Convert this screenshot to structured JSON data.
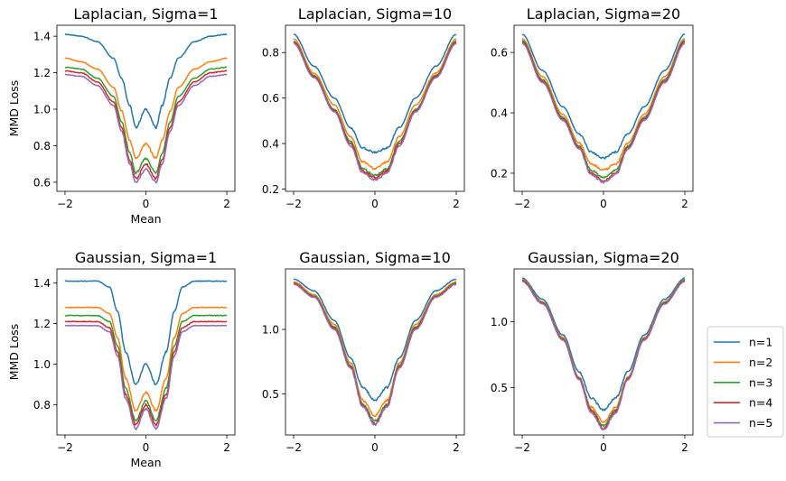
{
  "chart_data": [
    {
      "type": "line",
      "title": "Laplacian, Sigma=1",
      "xlabel": "Mean",
      "ylabel": "MMD Loss",
      "xlim": [
        -2.2,
        2.2
      ],
      "ylim": [
        0.55,
        1.46
      ],
      "x": [
        -2.0,
        -1.6,
        -1.2,
        -0.8,
        -0.6,
        -0.4,
        -0.25,
        0.0,
        0.25,
        0.4,
        0.6,
        0.8,
        1.2,
        1.6,
        2.0
      ],
      "xticks": [
        -2,
        0,
        2
      ],
      "xtick_labels": [
        "−2",
        "0",
        "2"
      ],
      "yticks": [
        0.6,
        0.8,
        1.0,
        1.2,
        1.4
      ],
      "ytick_labels": [
        "0.6",
        "0.8",
        "1.0",
        "1.2",
        "1.4"
      ],
      "series": [
        {
          "name": "n=1",
          "values": [
            1.41,
            1.4,
            1.37,
            1.28,
            1.17,
            1.02,
            0.9,
            1.0,
            0.9,
            1.02,
            1.17,
            1.28,
            1.37,
            1.4,
            1.41
          ]
        },
        {
          "name": "n=2",
          "values": [
            1.28,
            1.26,
            1.22,
            1.12,
            0.99,
            0.83,
            0.73,
            0.81,
            0.73,
            0.83,
            0.99,
            1.12,
            1.22,
            1.26,
            1.28
          ]
        },
        {
          "name": "n=3",
          "values": [
            1.23,
            1.22,
            1.17,
            1.07,
            0.93,
            0.76,
            0.65,
            0.73,
            0.65,
            0.76,
            0.93,
            1.07,
            1.17,
            1.22,
            1.23
          ]
        },
        {
          "name": "n=4",
          "values": [
            1.21,
            1.2,
            1.15,
            1.04,
            0.9,
            0.72,
            0.62,
            0.7,
            0.62,
            0.72,
            0.9,
            1.04,
            1.15,
            1.2,
            1.21
          ]
        },
        {
          "name": "n=5",
          "values": [
            1.19,
            1.18,
            1.13,
            1.02,
            0.88,
            0.7,
            0.6,
            0.67,
            0.6,
            0.7,
            0.88,
            1.02,
            1.13,
            1.18,
            1.19
          ]
        }
      ]
    },
    {
      "type": "line",
      "title": "Laplacian, Sigma=10",
      "xlabel": "",
      "ylabel": "",
      "xlim": [
        -2.2,
        2.2
      ],
      "ylim": [
        0.19,
        0.92
      ],
      "x": [
        -2.0,
        -1.5,
        -1.0,
        -0.6,
        -0.3,
        0.0,
        0.3,
        0.6,
        1.0,
        1.5,
        2.0
      ],
      "xticks": [
        -2,
        0,
        2
      ],
      "xtick_labels": [
        "−2",
        "0",
        "2"
      ],
      "yticks": [
        0.2,
        0.4,
        0.6,
        0.8
      ],
      "ytick_labels": [
        "0.2",
        "0.4",
        "0.6",
        "0.8"
      ],
      "series": [
        {
          "name": "n=1",
          "values": [
            0.88,
            0.74,
            0.6,
            0.47,
            0.38,
            0.36,
            0.38,
            0.47,
            0.6,
            0.74,
            0.88
          ]
        },
        {
          "name": "n=2",
          "values": [
            0.86,
            0.71,
            0.57,
            0.43,
            0.32,
            0.29,
            0.32,
            0.43,
            0.57,
            0.71,
            0.86
          ]
        },
        {
          "name": "n=3",
          "values": [
            0.85,
            0.7,
            0.55,
            0.41,
            0.29,
            0.26,
            0.29,
            0.41,
            0.55,
            0.7,
            0.85
          ]
        },
        {
          "name": "n=4",
          "values": [
            0.845,
            0.695,
            0.545,
            0.4,
            0.28,
            0.25,
            0.28,
            0.4,
            0.545,
            0.695,
            0.845
          ]
        },
        {
          "name": "n=5",
          "values": [
            0.84,
            0.69,
            0.54,
            0.39,
            0.27,
            0.24,
            0.27,
            0.39,
            0.54,
            0.69,
            0.84
          ]
        }
      ]
    },
    {
      "type": "line",
      "title": "Laplacian, Sigma=20",
      "xlabel": "",
      "ylabel": "",
      "xlim": [
        -2.2,
        2.2
      ],
      "ylim": [
        0.14,
        0.69
      ],
      "x": [
        -2.0,
        -1.5,
        -1.0,
        -0.6,
        -0.3,
        0.0,
        0.3,
        0.6,
        1.0,
        1.5,
        2.0
      ],
      "xticks": [
        -2,
        0,
        2
      ],
      "xtick_labels": [
        "−2",
        "0",
        "2"
      ],
      "yticks": [
        0.2,
        0.4,
        0.6
      ],
      "ytick_labels": [
        "0.2",
        "0.4",
        "0.6"
      ],
      "series": [
        {
          "name": "n=1",
          "values": [
            0.66,
            0.54,
            0.42,
            0.33,
            0.27,
            0.25,
            0.27,
            0.33,
            0.42,
            0.54,
            0.66
          ]
        },
        {
          "name": "n=2",
          "values": [
            0.645,
            0.52,
            0.395,
            0.3,
            0.23,
            0.21,
            0.23,
            0.3,
            0.395,
            0.52,
            0.645
          ]
        },
        {
          "name": "n=3",
          "values": [
            0.64,
            0.51,
            0.385,
            0.29,
            0.21,
            0.185,
            0.21,
            0.29,
            0.385,
            0.51,
            0.64
          ]
        },
        {
          "name": "n=4",
          "values": [
            0.635,
            0.505,
            0.38,
            0.285,
            0.2,
            0.175,
            0.2,
            0.285,
            0.38,
            0.505,
            0.635
          ]
        },
        {
          "name": "n=5",
          "values": [
            0.63,
            0.5,
            0.375,
            0.28,
            0.195,
            0.17,
            0.195,
            0.28,
            0.375,
            0.5,
            0.63
          ]
        }
      ]
    },
    {
      "type": "line",
      "title": "Gaussian, Sigma=1",
      "xlabel": "Mean",
      "ylabel": "MMD Loss",
      "xlim": [
        -2.2,
        2.2
      ],
      "ylim": [
        0.65,
        1.47
      ],
      "x": [
        -2.0,
        -1.6,
        -1.2,
        -0.9,
        -0.7,
        -0.5,
        -0.25,
        0.0,
        0.25,
        0.5,
        0.7,
        0.9,
        1.2,
        1.6,
        2.0
      ],
      "xticks": [
        -2,
        0,
        2
      ],
      "xtick_labels": [
        "−2",
        "0",
        "2"
      ],
      "yticks": [
        0.8,
        1.0,
        1.2,
        1.4
      ],
      "ytick_labels": [
        "0.8",
        "1.0",
        "1.2",
        "1.4"
      ],
      "series": [
        {
          "name": "n=1",
          "values": [
            1.41,
            1.41,
            1.41,
            1.38,
            1.26,
            1.06,
            0.9,
            1.0,
            0.9,
            1.06,
            1.26,
            1.38,
            1.41,
            1.41,
            1.41
          ]
        },
        {
          "name": "n=2",
          "values": [
            1.28,
            1.28,
            1.28,
            1.25,
            1.13,
            0.93,
            0.77,
            0.86,
            0.77,
            0.93,
            1.13,
            1.25,
            1.28,
            1.28,
            1.28
          ]
        },
        {
          "name": "n=3",
          "values": [
            1.24,
            1.24,
            1.24,
            1.21,
            1.09,
            0.88,
            0.72,
            0.82,
            0.72,
            0.88,
            1.09,
            1.21,
            1.24,
            1.24,
            1.24
          ]
        },
        {
          "name": "n=4",
          "values": [
            1.21,
            1.21,
            1.21,
            1.18,
            1.06,
            0.85,
            0.7,
            0.8,
            0.7,
            0.85,
            1.06,
            1.18,
            1.21,
            1.21,
            1.21
          ]
        },
        {
          "name": "n=5",
          "values": [
            1.19,
            1.19,
            1.19,
            1.16,
            1.04,
            0.83,
            0.68,
            0.78,
            0.68,
            0.83,
            1.04,
            1.16,
            1.19,
            1.19,
            1.19
          ]
        }
      ]
    },
    {
      "type": "line",
      "title": "Gaussian, Sigma=10",
      "xlabel": "",
      "ylabel": "",
      "xlim": [
        -2.2,
        2.2
      ],
      "ylim": [
        0.18,
        1.47
      ],
      "x": [
        -2.0,
        -1.5,
        -1.0,
        -0.6,
        -0.3,
        0.0,
        0.3,
        0.6,
        1.0,
        1.5,
        2.0
      ],
      "xticks": [
        -2,
        0,
        2
      ],
      "xtick_labels": [
        "−2",
        "0",
        "2"
      ],
      "yticks": [
        0.5,
        1.0
      ],
      "ytick_labels": [
        "0.5",
        "1.0"
      ],
      "series": [
        {
          "name": "n=1",
          "values": [
            1.39,
            1.3,
            1.07,
            0.78,
            0.55,
            0.45,
            0.55,
            0.78,
            1.07,
            1.3,
            1.39
          ]
        },
        {
          "name": "n=2",
          "values": [
            1.37,
            1.27,
            1.04,
            0.74,
            0.45,
            0.33,
            0.45,
            0.74,
            1.04,
            1.27,
            1.37
          ]
        },
        {
          "name": "n=3",
          "values": [
            1.36,
            1.26,
            1.02,
            0.72,
            0.42,
            0.29,
            0.42,
            0.72,
            1.02,
            1.26,
            1.36
          ]
        },
        {
          "name": "n=4",
          "values": [
            1.355,
            1.255,
            1.01,
            0.71,
            0.41,
            0.27,
            0.41,
            0.71,
            1.01,
            1.255,
            1.355
          ]
        },
        {
          "name": "n=5",
          "values": [
            1.35,
            1.25,
            1.0,
            0.7,
            0.4,
            0.26,
            0.4,
            0.7,
            1.0,
            1.25,
            1.35
          ]
        }
      ]
    },
    {
      "type": "line",
      "title": "Gaussian, Sigma=20",
      "xlabel": "",
      "ylabel": "",
      "xlim": [
        -2.2,
        2.2
      ],
      "ylim": [
        0.14,
        1.4
      ],
      "x": [
        -2.0,
        -1.5,
        -1.0,
        -0.6,
        -0.3,
        0.0,
        0.3,
        0.6,
        1.0,
        1.5,
        2.0
      ],
      "xticks": [
        -2,
        0,
        2
      ],
      "xtick_labels": [
        "−2",
        "0",
        "2"
      ],
      "yticks": [
        0.5,
        1.0
      ],
      "ytick_labels": [
        "0.5",
        "1.0"
      ],
      "series": [
        {
          "name": "n=1",
          "values": [
            1.33,
            1.17,
            0.9,
            0.62,
            0.42,
            0.33,
            0.42,
            0.62,
            0.9,
            1.17,
            1.33
          ]
        },
        {
          "name": "n=2",
          "values": [
            1.32,
            1.15,
            0.88,
            0.58,
            0.35,
            0.24,
            0.35,
            0.58,
            0.88,
            1.15,
            1.32
          ]
        },
        {
          "name": "n=3",
          "values": [
            1.315,
            1.145,
            0.87,
            0.57,
            0.33,
            0.21,
            0.33,
            0.57,
            0.87,
            1.145,
            1.315
          ]
        },
        {
          "name": "n=4",
          "values": [
            1.31,
            1.14,
            0.865,
            0.565,
            0.32,
            0.19,
            0.32,
            0.565,
            0.865,
            1.14,
            1.31
          ]
        },
        {
          "name": "n=5",
          "values": [
            1.305,
            1.135,
            0.86,
            0.56,
            0.31,
            0.18,
            0.31,
            0.56,
            0.86,
            1.135,
            1.305
          ]
        }
      ]
    }
  ],
  "legend": {
    "placement": "right",
    "items": [
      {
        "label": "n=1",
        "color": "#1f77b4"
      },
      {
        "label": "n=2",
        "color": "#ff7f0e"
      },
      {
        "label": "n=3",
        "color": "#2ca02c"
      },
      {
        "label": "n=4",
        "color": "#d62728"
      },
      {
        "label": "n=5",
        "color": "#9467bd"
      }
    ]
  },
  "colors": [
    "#1f77b4",
    "#ff7f0e",
    "#2ca02c",
    "#d62728",
    "#9467bd"
  ]
}
